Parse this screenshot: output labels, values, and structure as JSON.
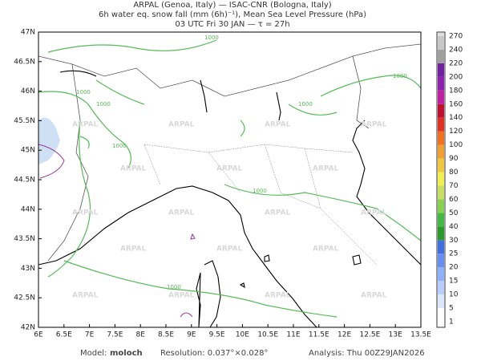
{
  "title_lines": [
    "ARPAL (Genoa, Italy)  —  ISAC-CNR (Bologna, Italy)",
    "6h water eq. snow fall (mm (6h)⁻¹), Mean Sea Level Pressure (hPa)",
    "03 UTC Fri 30 JAN  —  τ = 27h"
  ],
  "lat_labels": [
    "47N",
    "46.5N",
    "46N",
    "45.5N",
    "45N",
    "44.5N",
    "44N",
    "43.5N",
    "43N",
    "42.5N",
    "42N"
  ],
  "lon_labels": [
    "6E",
    "6.5E",
    "7E",
    "7.5E",
    "8E",
    "8.5E",
    "9E",
    "9.5E",
    "10E",
    "10.5E",
    "11E",
    "11.5E",
    "12E",
    "12.5E",
    "13E",
    "13.5E"
  ],
  "colorbar": {
    "labels": [
      "1",
      "5",
      "10",
      "15",
      "20",
      "25",
      "30",
      "40",
      "50",
      "60",
      "70",
      "80",
      "90",
      "100",
      "120",
      "140",
      "160",
      "180",
      "200",
      "220",
      "240",
      "270"
    ],
    "colors": [
      "#ffffff",
      "#dde8ff",
      "#b8ccff",
      "#8fb0ff",
      "#6690f0",
      "#3f6fe0",
      "#2a9a2a",
      "#44b844",
      "#88d050",
      "#c8e060",
      "#f0f050",
      "#f0c840",
      "#f0a030",
      "#f07020",
      "#e03020",
      "#c01030",
      "#c020a0",
      "#9020b0",
      "#7020a0",
      "#a0a0a0",
      "#c8c8c8",
      "#e0e0e0"
    ]
  },
  "watermark": "ARPAL",
  "contour_label": "1000",
  "footer": {
    "model_label": "Model:",
    "model": "moloch",
    "resolution": "Resolution: 0.037°×0.028°",
    "analysis": "Analysis: Thu 00Z29JAN2026"
  }
}
